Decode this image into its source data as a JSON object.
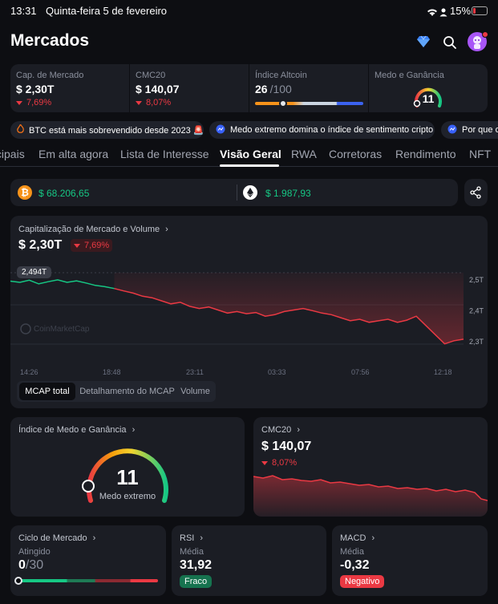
{
  "status": {
    "time": "13:31",
    "date": "Quinta-feira 5 de fevereiro",
    "battery": "15%"
  },
  "header": {
    "title": "Mercados"
  },
  "stats": {
    "market_cap": {
      "label": "Cap. de Mercado",
      "value": "$ 2,30T",
      "change": "7,69%"
    },
    "cmc20": {
      "label": "CMC20",
      "value": "$ 140,07",
      "change": "8,07%"
    },
    "altcoin": {
      "label": "Índice Altcoin",
      "value": "26",
      "max": "/100",
      "level": 26
    },
    "fear_greed": {
      "label": "Medo e Ganância",
      "value": "11"
    }
  },
  "news": [
    "BTC está mais sobrevendido desde 2023 🚨",
    "Medo extremo domina o índice de sentimento cripto",
    "Por que o"
  ],
  "tabs": [
    "Principais",
    "Em alta agora",
    "Lista de Interesse",
    "Visão Geral",
    "RWA",
    "Corretoras",
    "Rendimento",
    "NFT"
  ],
  "prices": {
    "btc": "$ 68.206,65",
    "eth": "$ 1.987,93"
  },
  "main_chart": {
    "title": "Capitalização de Mercado e Volume",
    "value": "$ 2,30T",
    "change": "7,69%",
    "tooltip": "2,494T",
    "watermark": "CoinMarketCap",
    "y_ticks": [
      "2,5T",
      "2,4T",
      "2,3T"
    ],
    "x_ticks": [
      "14:26",
      "18:48",
      "23:11",
      "03:33",
      "07:56",
      "12:18"
    ],
    "segments": [
      "MCAP total",
      "Detalhamento do MCAP",
      "Volume"
    ]
  },
  "fear_card": {
    "title": "Índice de Medo e Ganância",
    "value": "11",
    "label": "Medo extremo"
  },
  "cmc20_card": {
    "title": "CMC20",
    "value": "$ 140,07",
    "change": "8,07%"
  },
  "cycle_card": {
    "title": "Ciclo de Mercado",
    "sub": "Atingido",
    "value": "0",
    "max": "/30"
  },
  "rsi_card": {
    "title": "RSI",
    "sub": "Média",
    "value": "31,92",
    "badge": "Fraco"
  },
  "macd_card": {
    "title": "MACD",
    "sub": "Média",
    "value": "-0,32",
    "badge": "Negativo"
  },
  "colors": {
    "green": "#16c784",
    "red": "#ea3943",
    "bg": "#0d0e12",
    "card": "#1b1d24"
  },
  "chart_data": {
    "type": "line",
    "title": "Capitalização de Mercado e Volume",
    "x_ticks": [
      "14:26",
      "18:48",
      "23:11",
      "03:33",
      "07:56",
      "12:18"
    ],
    "ylim": [
      2.25,
      2.55
    ],
    "values": [
      2.494,
      2.49,
      2.497,
      2.485,
      2.492,
      2.498,
      2.49,
      2.495,
      2.488,
      2.48,
      2.476,
      2.47,
      2.462,
      2.455,
      2.445,
      2.44,
      2.43,
      2.42,
      2.425,
      2.412,
      2.405,
      2.41,
      2.4,
      2.39,
      2.395,
      2.388,
      2.392,
      2.38,
      2.385,
      2.395,
      2.4,
      2.405,
      2.398,
      2.39,
      2.385,
      2.375,
      2.365,
      2.37,
      2.36,
      2.365,
      2.37,
      2.36,
      2.367,
      2.38,
      2.35,
      2.32,
      2.29,
      2.3,
      2.305
    ]
  }
}
